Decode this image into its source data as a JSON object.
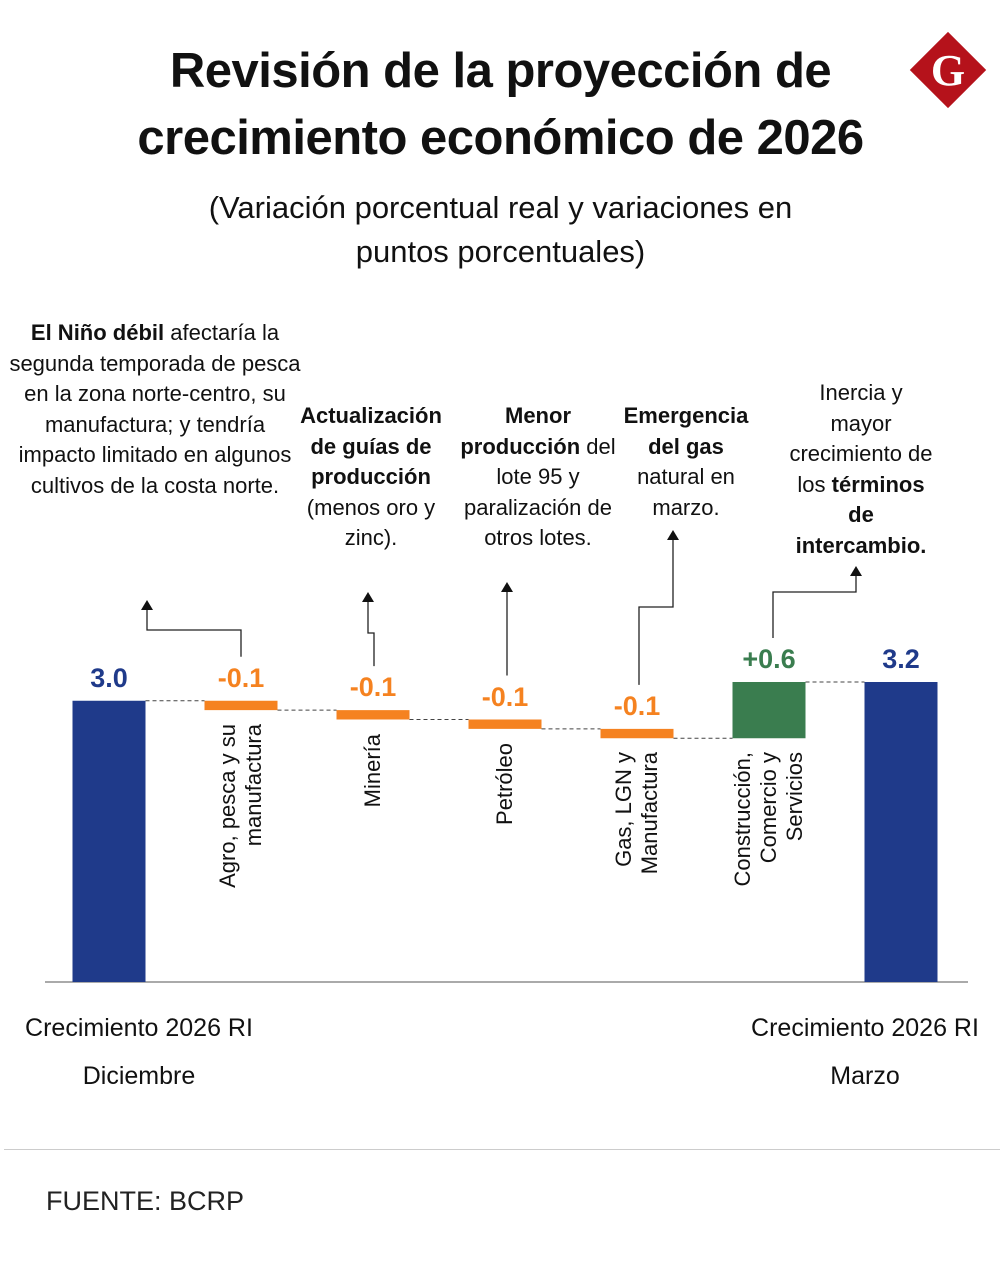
{
  "logo": "G",
  "chart_data": {
    "type": "waterfall",
    "title": "Revisión de la proyección de crecimiento económico de 2026",
    "subtitle": "(Variación porcentual real y variaciones en puntos porcentuales)",
    "categories": [
      "Crecimiento 2026 RI Diciembre",
      "Agro, pesca y su manufactura",
      "Minería",
      "Petróleo",
      "Gas, LGN y Manufactura",
      "Construcción, Comercio y Servicios",
      "Crecimiento 2026 RI Marzo"
    ],
    "values": [
      3.0,
      -0.1,
      -0.1,
      -0.1,
      -0.1,
      0.6,
      3.2
    ],
    "value_labels": [
      "3.0",
      "-0.1",
      "-0.1",
      "-0.1",
      "-0.1",
      "+0.6",
      "3.2"
    ],
    "measure": [
      "absolute",
      "relative",
      "relative",
      "relative",
      "relative",
      "relative",
      "absolute"
    ],
    "colors": [
      "#1f3a8a",
      "#f58220",
      "#f58220",
      "#f58220",
      "#f58220",
      "#3a7d4f",
      "#1f3a8a"
    ],
    "annotations": [
      [
        {
          "text": "El Niño débil",
          "bold": true
        },
        {
          "text": " afectaría la segunda temporada de pesca en la zona norte-centro, su manufactura; y tendría impacto limitado en algunos cultivos de la costa norte."
        }
      ],
      [
        {
          "text": "Actualización de guías de producción",
          "bold": true
        },
        {
          "text": " (menos oro y zinc)."
        }
      ],
      [
        {
          "text": "Menor producción",
          "bold": true
        },
        {
          "text": " del lote 95 y paralización de otros lotes."
        }
      ],
      [
        {
          "text": "Emergencia del gas",
          "bold": true
        },
        {
          "text": " natural en marzo."
        }
      ],
      [
        {
          "text": "Inercia y mayor crecimiento de los "
        },
        {
          "text": "términos de intercambio.",
          "bold": true
        }
      ]
    ],
    "source": "FUENTE: BCRP"
  }
}
